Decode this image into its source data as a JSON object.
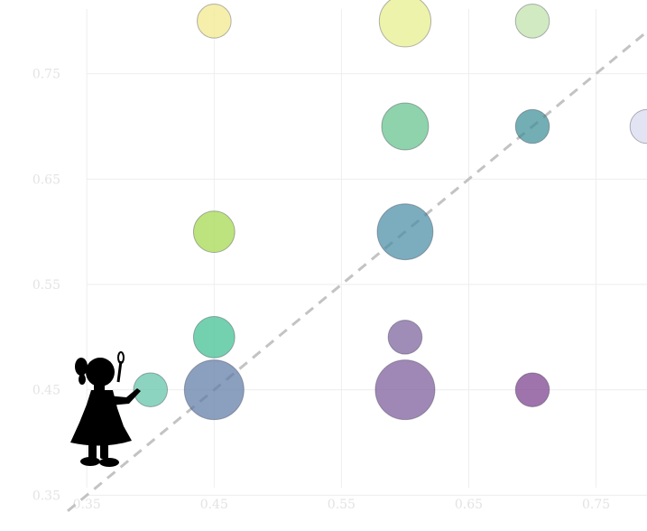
{
  "chart_data": {
    "type": "scatter",
    "title": "",
    "xlabel": "",
    "ylabel": "",
    "xlim": [
      0.33,
      0.79
    ],
    "ylim": [
      0.34,
      0.82
    ],
    "x_ticks": [
      0.35,
      0.45,
      0.55,
      0.65,
      0.75
    ],
    "y_ticks": [
      0.35,
      0.45,
      0.55,
      0.65,
      0.75
    ],
    "x_tick_labels": [
      "0.35",
      "0.45",
      "0.55",
      "0.65",
      "0.75"
    ],
    "y_tick_labels": [
      "0.35",
      "0.45",
      "0.55",
      "0.65",
      "0.75"
    ],
    "grid": true,
    "reference_line": {
      "style": "dashed",
      "color": "#c3c3c3",
      "relation": "y = x"
    },
    "points": [
      {
        "x": 0.4,
        "y": 0.45,
        "size": 1,
        "color": "#5fc4a8"
      },
      {
        "x": 0.45,
        "y": 0.45,
        "size": 6,
        "color": "#5e7aa6"
      },
      {
        "x": 0.45,
        "y": 0.5,
        "size": 2,
        "color": "#3fbf92"
      },
      {
        "x": 0.45,
        "y": 0.6,
        "size": 2,
        "color": "#a4d84c"
      },
      {
        "x": 0.45,
        "y": 0.8,
        "size": 1,
        "color": "#f3e98c"
      },
      {
        "x": 0.6,
        "y": 0.45,
        "size": 6,
        "color": "#7b5a9a"
      },
      {
        "x": 0.6,
        "y": 0.5,
        "size": 1,
        "color": "#7a619c"
      },
      {
        "x": 0.6,
        "y": 0.6,
        "size": 5,
        "color": "#4a8da6"
      },
      {
        "x": 0.6,
        "y": 0.7,
        "size": 3,
        "color": "#63c28a"
      },
      {
        "x": 0.6,
        "y": 0.8,
        "size": 4,
        "color": "#e8ee8a"
      },
      {
        "x": 0.7,
        "y": 0.45,
        "size": 1,
        "color": "#7a3f8c"
      },
      {
        "x": 0.7,
        "y": 0.7,
        "size": 1,
        "color": "#3f8f99"
      },
      {
        "x": 0.7,
        "y": 0.8,
        "size": 1,
        "color": "#bfe2a9"
      },
      {
        "x": 0.79,
        "y": 0.7,
        "size": 1,
        "color": "#d7d8ee"
      }
    ],
    "decoration": {
      "icon": "girl-blowing-bubbles-silhouette-icon",
      "color": "#000000"
    }
  }
}
